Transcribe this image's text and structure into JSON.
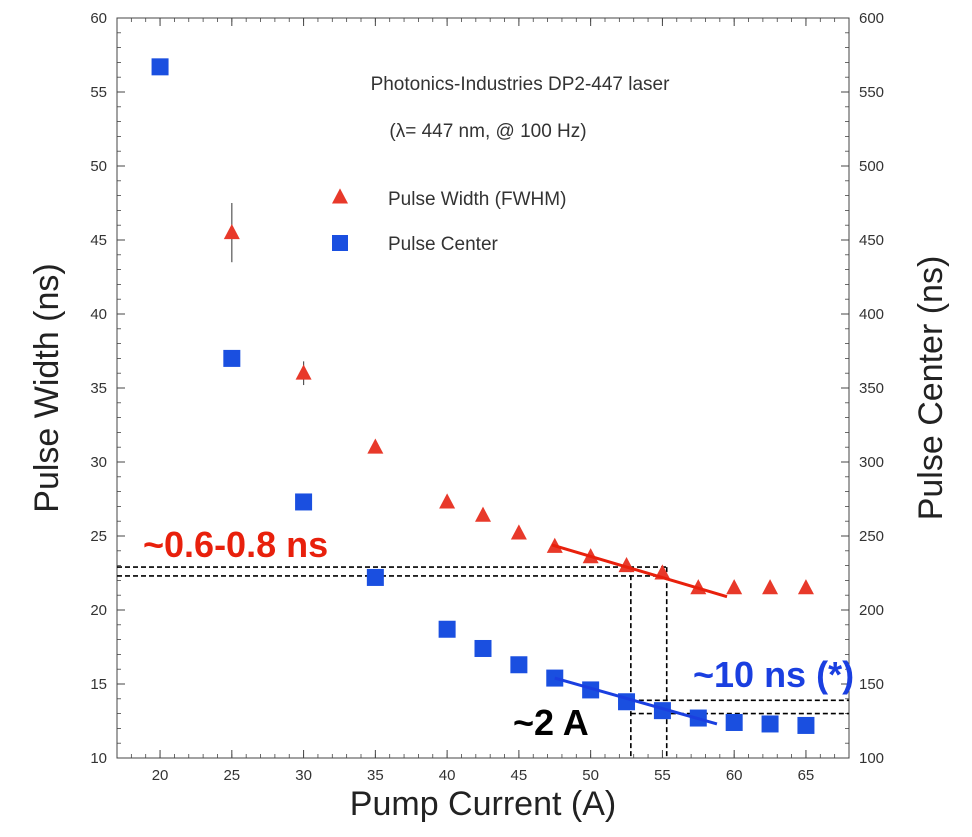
{
  "chart_data": {
    "type": "scatter",
    "title": "Photonics-Industries DP2-447 laser",
    "subtitle": "(λ= 447 nm, @ 100 Hz)",
    "xlabel": "Pump Current (A)",
    "ylabel": "Pulse Width (ns)",
    "ylabel_right": "Pulse Center (ns)",
    "xlim": [
      17,
      68
    ],
    "ylim": [
      10,
      60
    ],
    "ylim_right": [
      100,
      600
    ],
    "x_ticks": [
      20,
      25,
      30,
      35,
      40,
      45,
      50,
      55,
      60,
      65
    ],
    "y_ticks": [
      10,
      15,
      20,
      25,
      30,
      35,
      40,
      45,
      50,
      55,
      60
    ],
    "y_right_ticks": [
      100,
      150,
      200,
      250,
      300,
      350,
      400,
      450,
      500,
      550,
      600
    ],
    "grid": false,
    "legend_position": "top-center",
    "series": [
      {
        "name": "Pulse Width (FWHM)",
        "axis": "left",
        "marker": "triangle",
        "color": "#e8392a",
        "x": [
          25,
          30,
          35,
          40,
          42.5,
          45,
          47.5,
          50,
          52.5,
          55,
          57.5,
          60,
          62.5,
          65
        ],
        "y": [
          45.5,
          36,
          31,
          27.3,
          26.4,
          25.2,
          24.3,
          23.6,
          23.0,
          22.5,
          21.5,
          21.5,
          21.5,
          21.5
        ],
        "error": [
          2.0,
          0.8,
          0,
          0,
          0,
          0,
          0,
          0,
          0,
          0,
          0,
          0,
          0,
          0
        ]
      },
      {
        "name": "Pulse Center",
        "axis": "right",
        "marker": "square",
        "color": "#1a4fe0",
        "x": [
          20,
          25,
          30,
          35,
          40,
          42.5,
          45,
          47.5,
          50,
          52.5,
          55,
          57.5,
          60,
          62.5,
          65
        ],
        "y": [
          567,
          370,
          273,
          222,
          187,
          174,
          163,
          154,
          146,
          138,
          132,
          127,
          124,
          123,
          122
        ]
      }
    ],
    "annotations": {
      "width_spread": "~0.6-0.8 ns",
      "current_spread": "~2 A",
      "center_spread": "~10 ns (*)"
    },
    "colors": {
      "red_annotation": "#e8200c",
      "blue_annotation": "#1a3fe0",
      "black_annotation": "#000000"
    }
  }
}
